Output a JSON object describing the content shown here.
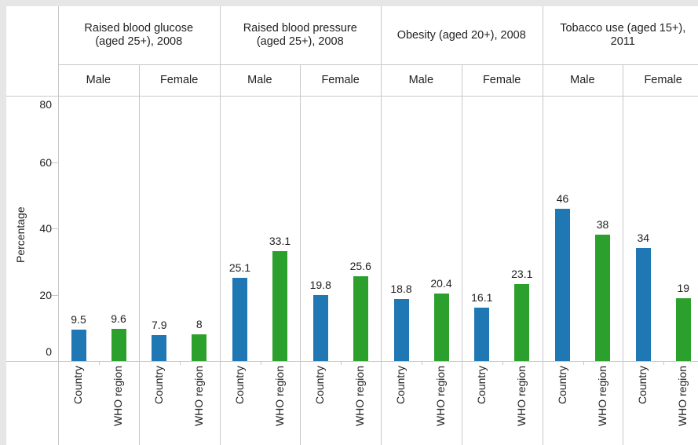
{
  "chart_data": {
    "type": "bar",
    "y_label": "Percentage",
    "categories": [
      "Country",
      "WHO region"
    ],
    "colors": [
      "#1f77b4",
      "#2ca02c"
    ],
    "ylim": [
      0,
      80
    ],
    "yticks": [
      0,
      20,
      40,
      60,
      80
    ],
    "panels": [
      {
        "title": "Raised blood glucose (aged 25+), 2008",
        "subpanels": [
          {
            "name": "Male",
            "values": [
              9.5,
              9.6
            ]
          },
          {
            "name": "Female",
            "values": [
              7.9,
              8
            ]
          }
        ]
      },
      {
        "title": "Raised blood pressure (aged 25+), 2008",
        "subpanels": [
          {
            "name": "Male",
            "values": [
              25.1,
              33.1
            ]
          },
          {
            "name": "Female",
            "values": [
              19.8,
              25.6
            ]
          }
        ]
      },
      {
        "title": "Obesity (aged 20+), 2008",
        "subpanels": [
          {
            "name": "Male",
            "values": [
              18.8,
              20.4
            ]
          },
          {
            "name": "Female",
            "values": [
              16.1,
              23.1
            ]
          }
        ]
      },
      {
        "title": "Tobacco use (aged 15+), 2011",
        "subpanels": [
          {
            "name": "Male",
            "values": [
              46,
              38
            ]
          },
          {
            "name": "Female",
            "values": [
              34,
              19
            ]
          }
        ]
      }
    ]
  }
}
